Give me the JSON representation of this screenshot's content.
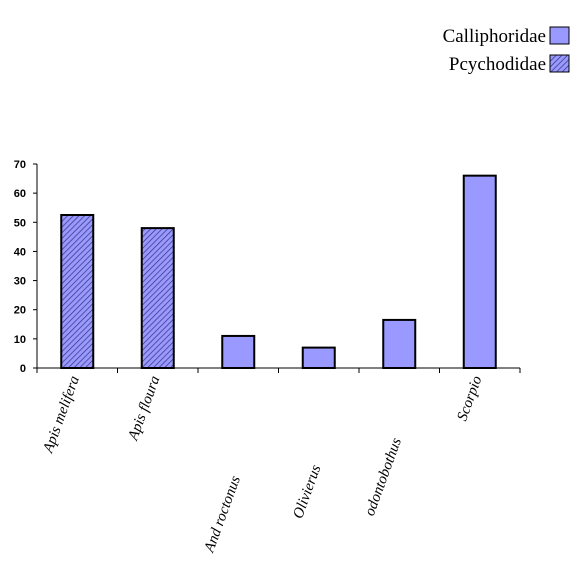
{
  "chart_data": {
    "type": "bar",
    "categories": [
      "Apis melifera",
      "Apis floura",
      "And roctonus",
      "Olivierus",
      "odontobothus",
      "Scorpio"
    ],
    "series": [
      {
        "name": "Calliphoridae",
        "values": [
          null,
          null,
          11,
          7,
          16.5,
          66
        ]
      },
      {
        "name": "Pcychodidae",
        "values": [
          52.5,
          48,
          null,
          null,
          null,
          null
        ]
      }
    ],
    "ylim": [
      0,
      70
    ],
    "yticks": [
      0,
      10,
      20,
      30,
      40,
      50,
      60,
      70
    ],
    "legend_position": "top-right",
    "grid": false,
    "colors": {
      "bar_fill": "#9999ff",
      "bar_stroke": "#000000",
      "hatch": "#33337a"
    }
  }
}
